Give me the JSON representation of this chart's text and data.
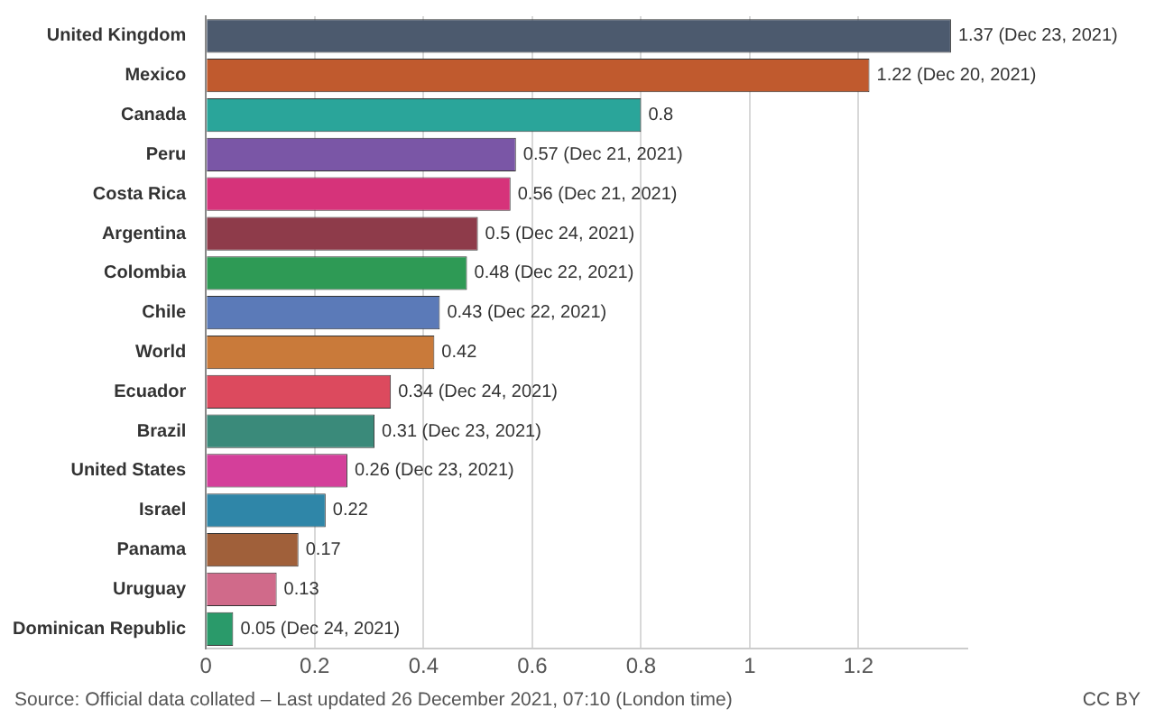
{
  "chart_data": {
    "type": "bar",
    "orientation": "horizontal",
    "categories": [
      "United Kingdom",
      "Mexico",
      "Canada",
      "Peru",
      "Costa Rica",
      "Argentina",
      "Colombia",
      "Chile",
      "World",
      "Ecuador",
      "Brazil",
      "United States",
      "Israel",
      "Panama",
      "Uruguay",
      "Dominican Republic"
    ],
    "values": [
      1.37,
      1.22,
      0.8,
      0.57,
      0.56,
      0.5,
      0.48,
      0.43,
      0.42,
      0.34,
      0.31,
      0.26,
      0.22,
      0.17,
      0.13,
      0.05
    ],
    "colors": [
      "#4c5a6e",
      "#c05a2e",
      "#2aa59a",
      "#7a56a6",
      "#d6337a",
      "#8e3b4a",
      "#2e9a55",
      "#5b7ab8",
      "#c97a3a",
      "#dc4a5e",
      "#3a8a7a",
      "#d43f9a",
      "#2f86a8",
      "#a0603a",
      "#d06a8a",
      "#2a9a6a"
    ],
    "value_labels": [
      "1.37 (Dec 23, 2021)",
      "1.22 (Dec 20, 2021)",
      "0.8",
      "0.57 (Dec 21, 2021)",
      "0.56 (Dec 21, 2021)",
      "0.5 (Dec 24, 2021)",
      "0.48 (Dec 22, 2021)",
      "0.43 (Dec 22, 2021)",
      "0.42",
      "0.34 (Dec 24, 2021)",
      "0.31 (Dec 23, 2021)",
      "0.26 (Dec 23, 2021)",
      "0.22",
      "0.17",
      "0.13",
      "0.05 (Dec 24, 2021)"
    ],
    "xlim": [
      0,
      1.4
    ],
    "xticks": [
      0,
      0.2,
      0.4,
      0.6,
      0.8,
      1,
      1.2
    ],
    "grid": "x",
    "legend": false,
    "annotations": [
      "Source: Official data collated – Last updated 26 December 2021, 07:10 (London time)",
      "CC BY"
    ]
  }
}
